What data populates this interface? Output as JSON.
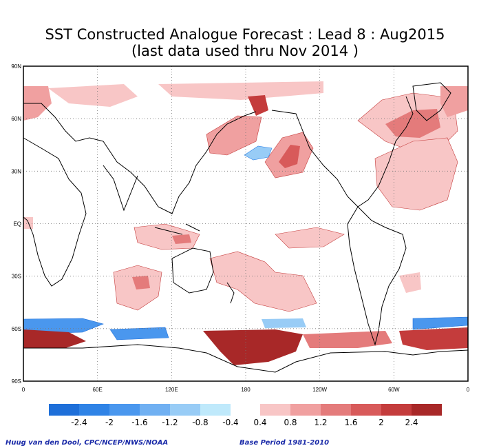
{
  "title": {
    "line1": "SST Constructed Analogue Forecast : Lead 8 : Aug2015",
    "line2": "(last data used thru Nov 2014 )"
  },
  "axes": {
    "lat_labels": [
      "90N",
      "60N",
      "30N",
      "EQ",
      "30S",
      "60S",
      "90S"
    ],
    "lon_labels": [
      "0",
      "60E",
      "120E",
      "180",
      "120W",
      "60W",
      "0"
    ]
  },
  "legend": {
    "label_values": [
      "-2.4",
      "-2",
      "-1.6",
      "-1.2",
      "-0.8",
      "-0.4",
      "0.4",
      "0.8",
      "1.2",
      "1.6",
      "2",
      "2.4"
    ],
    "negative_colors": [
      "#1e6fd9",
      "#2f83e6",
      "#4a97ee",
      "#70b0f2",
      "#98ccf6",
      "#bfe9fb"
    ],
    "positive_colors": [
      "#f8c6c6",
      "#f0a0a0",
      "#e47b7b",
      "#d85a5a",
      "#c43c3c",
      "#a82828"
    ]
  },
  "credits": {
    "left": "Huug van den Dool, CPC/NCEP/NWS/NOAA",
    "right": "Base Period 1981-2010"
  },
  "map_meta": {
    "projection": "equirectangular",
    "lon_range": [
      0,
      360
    ],
    "lat_range": [
      -90,
      90
    ],
    "gridlines": "dotted every 30 degrees",
    "ocean_fill": "#ffffff",
    "coastline_color": "#000000"
  }
}
